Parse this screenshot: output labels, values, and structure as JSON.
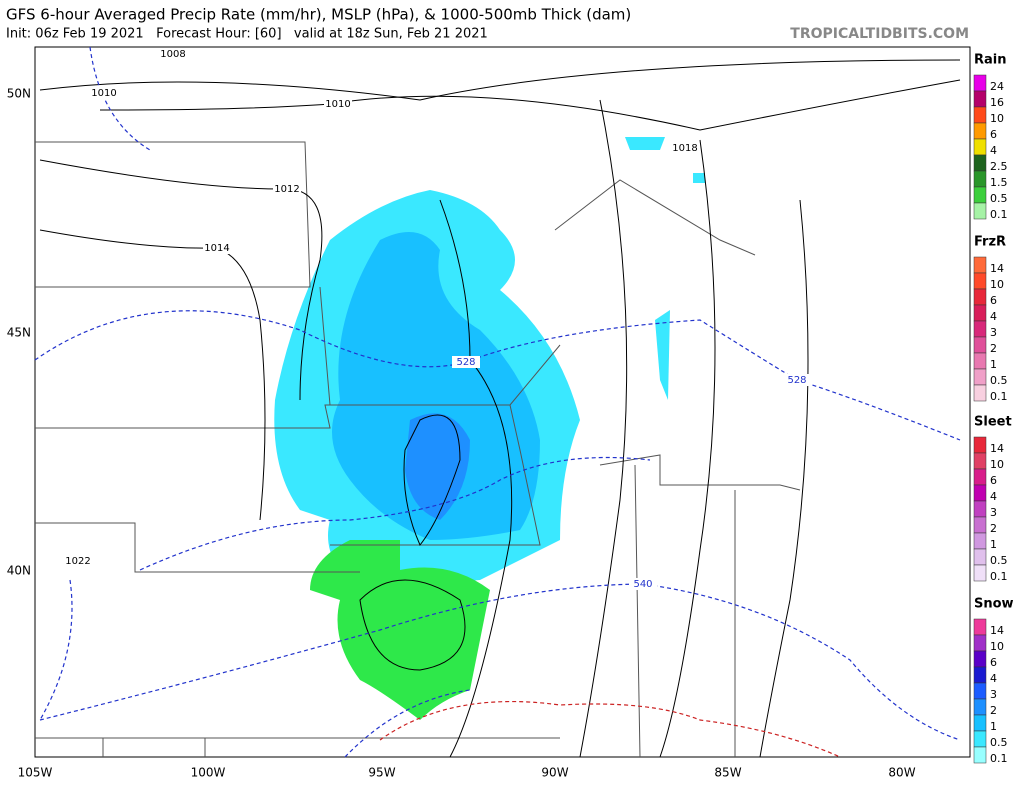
{
  "header": {
    "title": "GFS 6-hour Averaged Precip Rate (mm/hr), MSLP (hPa), & 1000-500mb Thick (dam)",
    "subtitle": "Init: 06z Feb 19 2021   Forecast Hour: [60]   valid at 18z Sun, Feb 21 2021",
    "source": "TROPICALTIDBITS.COM"
  },
  "map": {
    "lat_labels": [
      "50N",
      "45N",
      "40N"
    ],
    "lon_labels": [
      "105W",
      "100W",
      "95W",
      "90W",
      "85W",
      "80W"
    ],
    "contour_labels": [
      "1008",
      "1010",
      "1010",
      "1012",
      "1014",
      "1018",
      "1022",
      "528",
      "528",
      "540"
    ]
  },
  "legend": [
    {
      "title": "Rain",
      "labels": [
        "24",
        "16",
        "10",
        "6",
        "4",
        "2.5",
        "1.5",
        "0.5",
        "0.1"
      ],
      "colors": [
        "#e800e8",
        "#b4006a",
        "#ff4a1a",
        "#ff9a00",
        "#f0e000",
        "#1e641e",
        "#2a962a",
        "#3ccf3c",
        "#a6f2a6"
      ]
    },
    {
      "title": "FrzR",
      "labels": [
        "14",
        "10",
        "6",
        "4",
        "3",
        "2",
        "1",
        "0.5",
        "0.1"
      ],
      "colors": [
        "#ff6a3a",
        "#ff4a2a",
        "#e8283a",
        "#d81e5a",
        "#d8287a",
        "#e0509a",
        "#e878b0",
        "#f0a0c8",
        "#f8d0e0"
      ]
    },
    {
      "title": "Sleet",
      "labels": [
        "14",
        "10",
        "6",
        "4",
        "3",
        "2",
        "1",
        "0.5",
        "0.1"
      ],
      "colors": [
        "#e8283a",
        "#e04064",
        "#d81e8a",
        "#c000b0",
        "#c040c0",
        "#c870d0",
        "#d098e0",
        "#e0c0ec",
        "#f0e0f8"
      ]
    },
    {
      "title": "Snow",
      "labels": [
        "14",
        "10",
        "6",
        "4",
        "3",
        "2",
        "1",
        "0.5",
        "0.1"
      ],
      "colors": [
        "#ee3a9a",
        "#a030c8",
        "#5a00c8",
        "#1a1ad0",
        "#1c5cff",
        "#1e90ff",
        "#18c0ff",
        "#3ae8ff",
        "#98ffff"
      ]
    }
  ]
}
